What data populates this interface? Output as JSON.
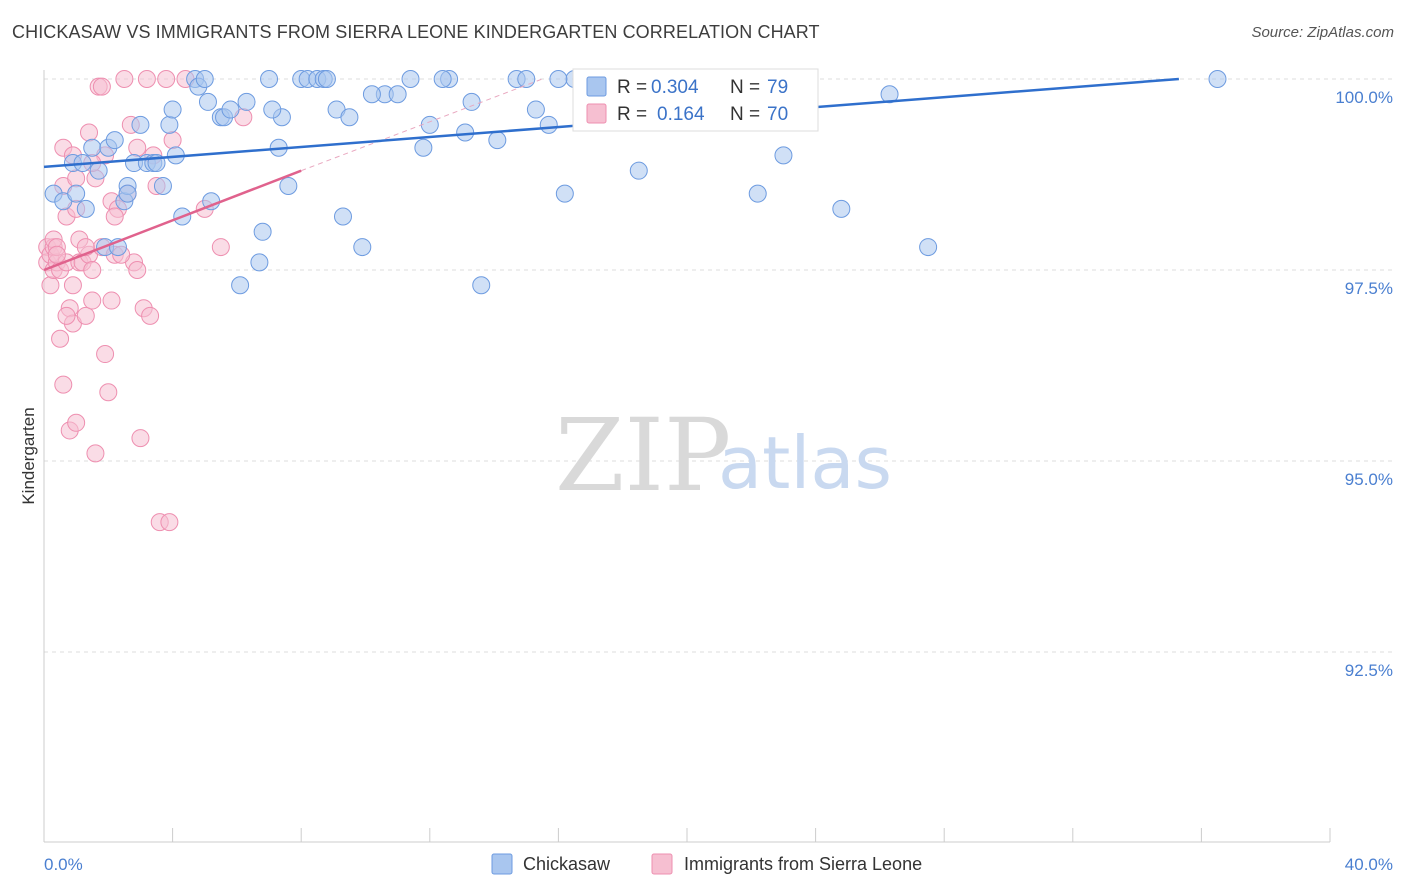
{
  "title": "CHICKASAW VS IMMIGRANTS FROM SIERRA LEONE KINDERGARTEN CORRELATION CHART",
  "source": "Source: ZipAtlas.com",
  "watermark": {
    "zip": "ZIP",
    "atlas": "atlas"
  },
  "colors": {
    "blue_fill": "#a9c6ef",
    "blue_stroke": "#6d9be0",
    "blue_line": "#2f6fcd",
    "pink_fill": "#f6bfd1",
    "pink_stroke": "#ee8fb0",
    "pink_line": "#e0628d",
    "grid": "#dddddd",
    "axis_text": "#4a7fd0"
  },
  "legend": {
    "rows": [
      {
        "r_label": "R =",
        "r_value": "0.304",
        "n_label": "N =",
        "n_value": "79"
      },
      {
        "r_label": "R =",
        "r_value": "0.164",
        "n_label": "N =",
        "n_value": "70"
      }
    ]
  },
  "bottom_legend": {
    "series1": "Chickasaw",
    "series2": "Immigrants from Sierra Leone"
  },
  "chart_data": {
    "type": "scatter",
    "title": "CHICKASAW VS IMMIGRANTS FROM SIERRA LEONE KINDERGARTEN CORRELATION CHART",
    "xlabel": "",
    "ylabel": "Kindergarten",
    "xlim": [
      0,
      40
    ],
    "ylim": [
      90.2,
      100.4
    ],
    "x_tick_labels": [
      "0.0%",
      "40.0%"
    ],
    "y_ticks": [
      92.5,
      95.0,
      97.5,
      100.0
    ],
    "y_tick_labels": [
      "92.5%",
      "95.0%",
      "97.5%",
      "100.0%"
    ],
    "series": [
      {
        "name": "Chickasaw",
        "R": 0.304,
        "N": 79,
        "trend": {
          "x": [
            0,
            35.3
          ],
          "y": [
            98.85,
            100.0
          ]
        },
        "points": [
          [
            0.3,
            98.5
          ],
          [
            0.6,
            98.4
          ],
          [
            0.9,
            98.9
          ],
          [
            1.0,
            98.5
          ],
          [
            1.2,
            98.9
          ],
          [
            1.3,
            98.3
          ],
          [
            1.5,
            99.1
          ],
          [
            1.7,
            98.8
          ],
          [
            1.9,
            97.8
          ],
          [
            2.0,
            99.1
          ],
          [
            2.2,
            99.2
          ],
          [
            2.3,
            97.8
          ],
          [
            2.5,
            98.4
          ],
          [
            2.6,
            98.6
          ],
          [
            2.8,
            98.9
          ],
          [
            3.0,
            99.4
          ],
          [
            3.2,
            98.9
          ],
          [
            3.4,
            98.9
          ],
          [
            3.5,
            98.9
          ],
          [
            3.7,
            98.6
          ],
          [
            3.9,
            99.4
          ],
          [
            4.0,
            99.6
          ],
          [
            4.1,
            99.0
          ],
          [
            4.3,
            98.2
          ],
          [
            4.7,
            100.0
          ],
          [
            4.8,
            99.9
          ],
          [
            5.0,
            100.0
          ],
          [
            5.1,
            99.7
          ],
          [
            5.2,
            98.4
          ],
          [
            5.5,
            99.5
          ],
          [
            5.6,
            99.5
          ],
          [
            5.8,
            99.6
          ],
          [
            6.1,
            97.3
          ],
          [
            6.7,
            97.6
          ],
          [
            6.8,
            98.0
          ],
          [
            7.0,
            100.0
          ],
          [
            7.3,
            99.1
          ],
          [
            7.4,
            99.5
          ],
          [
            7.6,
            98.6
          ],
          [
            8.0,
            100.0
          ],
          [
            8.2,
            100.0
          ],
          [
            8.5,
            100.0
          ],
          [
            8.7,
            100.0
          ],
          [
            8.8,
            100.0
          ],
          [
            9.1,
            99.6
          ],
          [
            9.3,
            98.2
          ],
          [
            9.5,
            99.5
          ],
          [
            9.9,
            97.8
          ],
          [
            10.6,
            99.8
          ],
          [
            11.0,
            99.8
          ],
          [
            11.4,
            100.0
          ],
          [
            11.8,
            99.1
          ],
          [
            12.0,
            99.4
          ],
          [
            12.6,
            100.0
          ],
          [
            13.3,
            99.7
          ],
          [
            13.6,
            97.3
          ],
          [
            14.1,
            99.2
          ],
          [
            14.7,
            100.0
          ],
          [
            15.0,
            100.0
          ],
          [
            15.3,
            99.6
          ],
          [
            15.7,
            99.4
          ],
          [
            16.2,
            98.5
          ],
          [
            16.5,
            100.0
          ],
          [
            17.3,
            100.0
          ],
          [
            18.5,
            98.8
          ],
          [
            19.6,
            99.7
          ],
          [
            22.2,
            98.5
          ],
          [
            23.0,
            99.0
          ],
          [
            24.8,
            98.3
          ],
          [
            26.3,
            99.8
          ],
          [
            27.5,
            97.8
          ],
          [
            36.5,
            100.0
          ],
          [
            2.6,
            98.5
          ],
          [
            6.3,
            99.7
          ],
          [
            7.1,
            99.6
          ],
          [
            10.2,
            99.8
          ],
          [
            12.4,
            100.0
          ],
          [
            13.1,
            99.3
          ],
          [
            16.0,
            100.0
          ]
        ]
      },
      {
        "name": "Immigrants from Sierra Leone",
        "R": 0.164,
        "N": 70,
        "trend": {
          "x": [
            0,
            8.0
          ],
          "y": [
            97.5,
            98.8
          ]
        },
        "points": [
          [
            0.1,
            97.8
          ],
          [
            0.1,
            97.6
          ],
          [
            0.2,
            97.3
          ],
          [
            0.2,
            97.7
          ],
          [
            0.3,
            97.5
          ],
          [
            0.3,
            97.8
          ],
          [
            0.3,
            97.9
          ],
          [
            0.4,
            97.6
          ],
          [
            0.4,
            97.8
          ],
          [
            0.5,
            96.6
          ],
          [
            0.5,
            97.5
          ],
          [
            0.6,
            96.0
          ],
          [
            0.6,
            98.6
          ],
          [
            0.6,
            99.1
          ],
          [
            0.7,
            97.6
          ],
          [
            0.7,
            98.2
          ],
          [
            0.8,
            95.4
          ],
          [
            0.8,
            97.0
          ],
          [
            0.9,
            96.8
          ],
          [
            0.9,
            97.3
          ],
          [
            1.0,
            95.5
          ],
          [
            1.0,
            98.3
          ],
          [
            1.1,
            97.6
          ],
          [
            1.1,
            97.9
          ],
          [
            1.2,
            97.6
          ],
          [
            1.3,
            96.9
          ],
          [
            1.4,
            99.3
          ],
          [
            1.4,
            97.7
          ],
          [
            1.5,
            97.1
          ],
          [
            1.5,
            97.5
          ],
          [
            1.6,
            95.1
          ],
          [
            1.6,
            98.7
          ],
          [
            1.7,
            99.9
          ],
          [
            1.8,
            97.8
          ],
          [
            1.9,
            96.4
          ],
          [
            1.9,
            99.0
          ],
          [
            2.0,
            95.9
          ],
          [
            2.1,
            98.4
          ],
          [
            2.2,
            97.7
          ],
          [
            2.3,
            98.3
          ],
          [
            2.5,
            100.0
          ],
          [
            2.7,
            99.4
          ],
          [
            2.8,
            97.6
          ],
          [
            2.9,
            99.1
          ],
          [
            3.0,
            95.3
          ],
          [
            3.1,
            97.0
          ],
          [
            3.2,
            100.0
          ],
          [
            3.3,
            96.9
          ],
          [
            3.5,
            98.6
          ],
          [
            3.6,
            94.2
          ],
          [
            3.8,
            100.0
          ],
          [
            3.9,
            94.2
          ],
          [
            4.0,
            99.2
          ],
          [
            4.4,
            100.0
          ],
          [
            5.0,
            98.3
          ],
          [
            5.5,
            97.8
          ],
          [
            6.2,
            99.5
          ],
          [
            2.4,
            97.7
          ],
          [
            2.6,
            98.5
          ],
          [
            1.3,
            97.8
          ],
          [
            0.9,
            99.0
          ],
          [
            1.8,
            99.9
          ],
          [
            2.2,
            98.2
          ],
          [
            0.4,
            97.7
          ],
          [
            0.7,
            96.9
          ],
          [
            1.5,
            98.9
          ],
          [
            2.9,
            97.5
          ],
          [
            1.0,
            98.7
          ],
          [
            3.4,
            99.0
          ],
          [
            2.1,
            97.1
          ]
        ]
      }
    ]
  }
}
